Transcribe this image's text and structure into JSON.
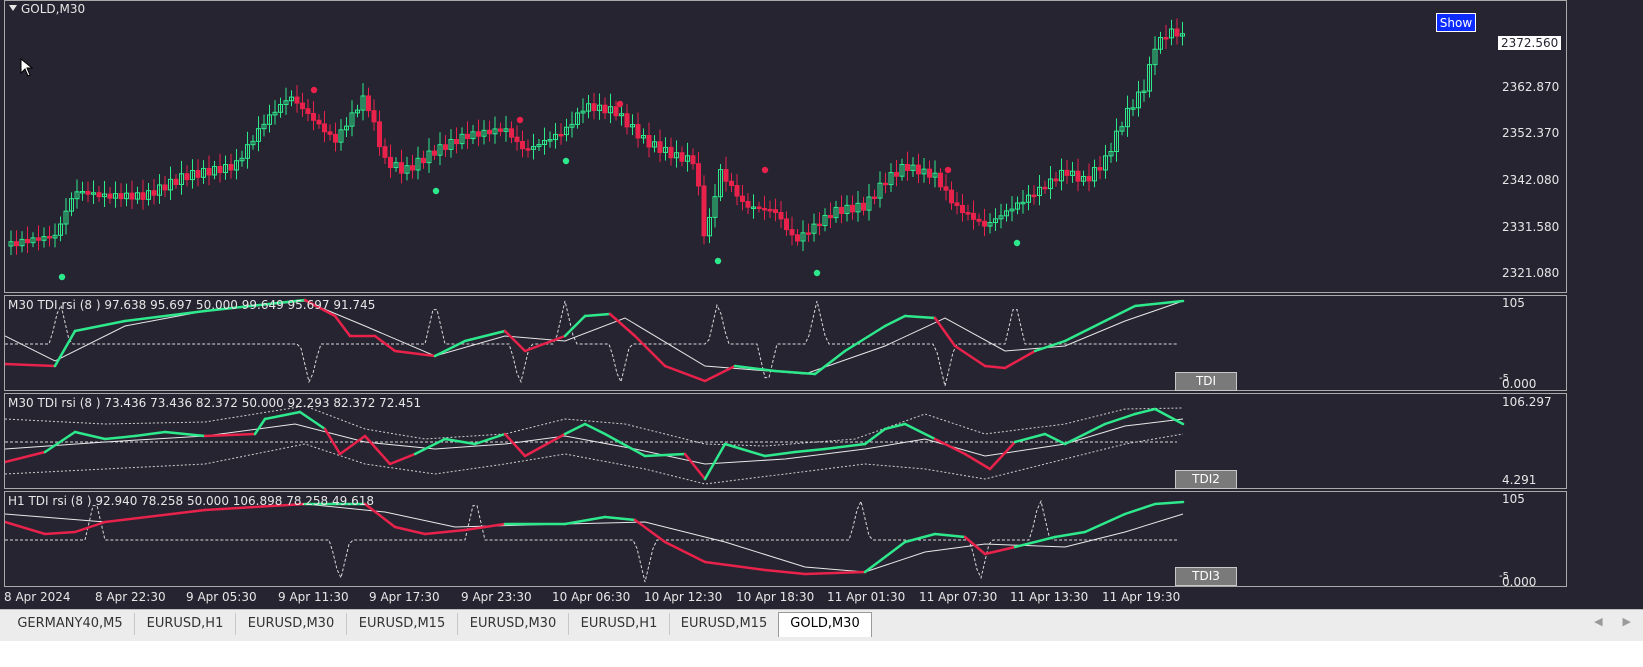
{
  "window": {
    "symbol_title": "GOLD,M30"
  },
  "main_pane": {
    "show_button": "Show",
    "current_price": "2372.560",
    "price_levels": [
      "2362.870",
      "2352.370",
      "2342.080",
      "2331.580",
      "2321.080"
    ]
  },
  "indicators": [
    {
      "label": "M30 TDI rsi (8 ) 97.638 95.697 50.000 99.649 95.697 91.745",
      "button": "TDI",
      "scale_top": "105",
      "scale_bottom": "-5",
      "scale_bottom2": "0.000"
    },
    {
      "label": "M30 TDI rsi (8 ) 73.436 73.436 82.372 50.000 92.293 82.372 72.451",
      "button": "TDI2",
      "scale_top": "106.297",
      "scale_bottom": "4.291"
    },
    {
      "label": "H1 TDI rsi (8 ) 92.940 78.258 50.000 106.898 78.258 49.618",
      "button": "TDI3",
      "scale_top": "105",
      "scale_bottom": "-5",
      "scale_bottom2": "0.000"
    }
  ],
  "time_axis": [
    "8 Apr 2024",
    "8 Apr 22:30",
    "9 Apr 05:30",
    "9 Apr 11:30",
    "9 Apr 17:30",
    "9 Apr 23:30",
    "10 Apr 06:30",
    "10 Apr 12:30",
    "10 Apr 18:30",
    "11 Apr 01:30",
    "11 Apr 07:30",
    "11 Apr 13:30",
    "11 Apr 19:30"
  ],
  "tabs": [
    {
      "label": "GERMANY40,M5",
      "active": false
    },
    {
      "label": "EURUSD,H1",
      "active": false
    },
    {
      "label": "EURUSD,M30",
      "active": false
    },
    {
      "label": "EURUSD,M15",
      "active": false
    },
    {
      "label": "EURUSD,M30",
      "active": false
    },
    {
      "label": "EURUSD,H1",
      "active": false
    },
    {
      "label": "EURUSD,M15",
      "active": false
    },
    {
      "label": "GOLD,M30",
      "active": true
    }
  ],
  "colors": {
    "background": "#262431",
    "bull": "#2ee88c",
    "bear": "#e8224a",
    "text": "#e6e6e6",
    "tab_bar": "#ececec"
  }
}
